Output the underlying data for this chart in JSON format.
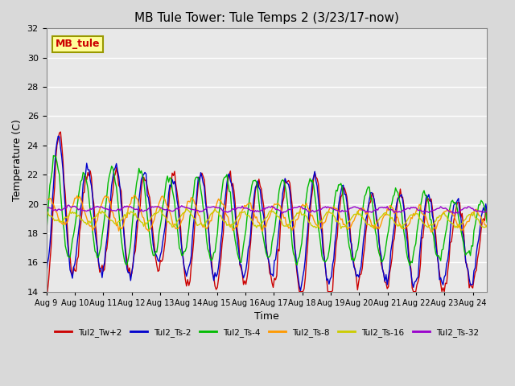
{
  "title": "MB Tule Tower: Tule Temps 2 (3/23/17-now)",
  "xlabel": "Time",
  "ylabel": "Temperature (C)",
  "ylim": [
    14,
    32
  ],
  "yticks": [
    14,
    16,
    18,
    20,
    22,
    24,
    26,
    28,
    30,
    32
  ],
  "xtick_labels": [
    "Aug 9",
    "Aug 10",
    "Aug 11",
    "Aug 12",
    "Aug 13",
    "Aug 14",
    "Aug 15",
    "Aug 16",
    "Aug 17",
    "Aug 18",
    "Aug 19",
    "Aug 20",
    "Aug 21",
    "Aug 22",
    "Aug 23",
    "Aug 24"
  ],
  "background_color": "#d9d9d9",
  "plot_bg_color": "#e8e8e8",
  "grid_color": "#ffffff",
  "legend_label": "MB_tule",
  "legend_bg": "#ffff99",
  "legend_border": "#999900",
  "series_colors": [
    "#cc0000",
    "#0000cc",
    "#00bb00",
    "#ff9900",
    "#cccc00",
    "#9900cc"
  ],
  "series_labels": [
    "Tul2_Tw+2",
    "Tul2_Ts-2",
    "Tul2_Ts-4",
    "Tul2_Ts-8",
    "Tul2_Ts-16",
    "Tul2_Ts-32"
  ],
  "n_days": 15.5,
  "figwidth": 6.4,
  "figheight": 4.8,
  "dpi": 100
}
